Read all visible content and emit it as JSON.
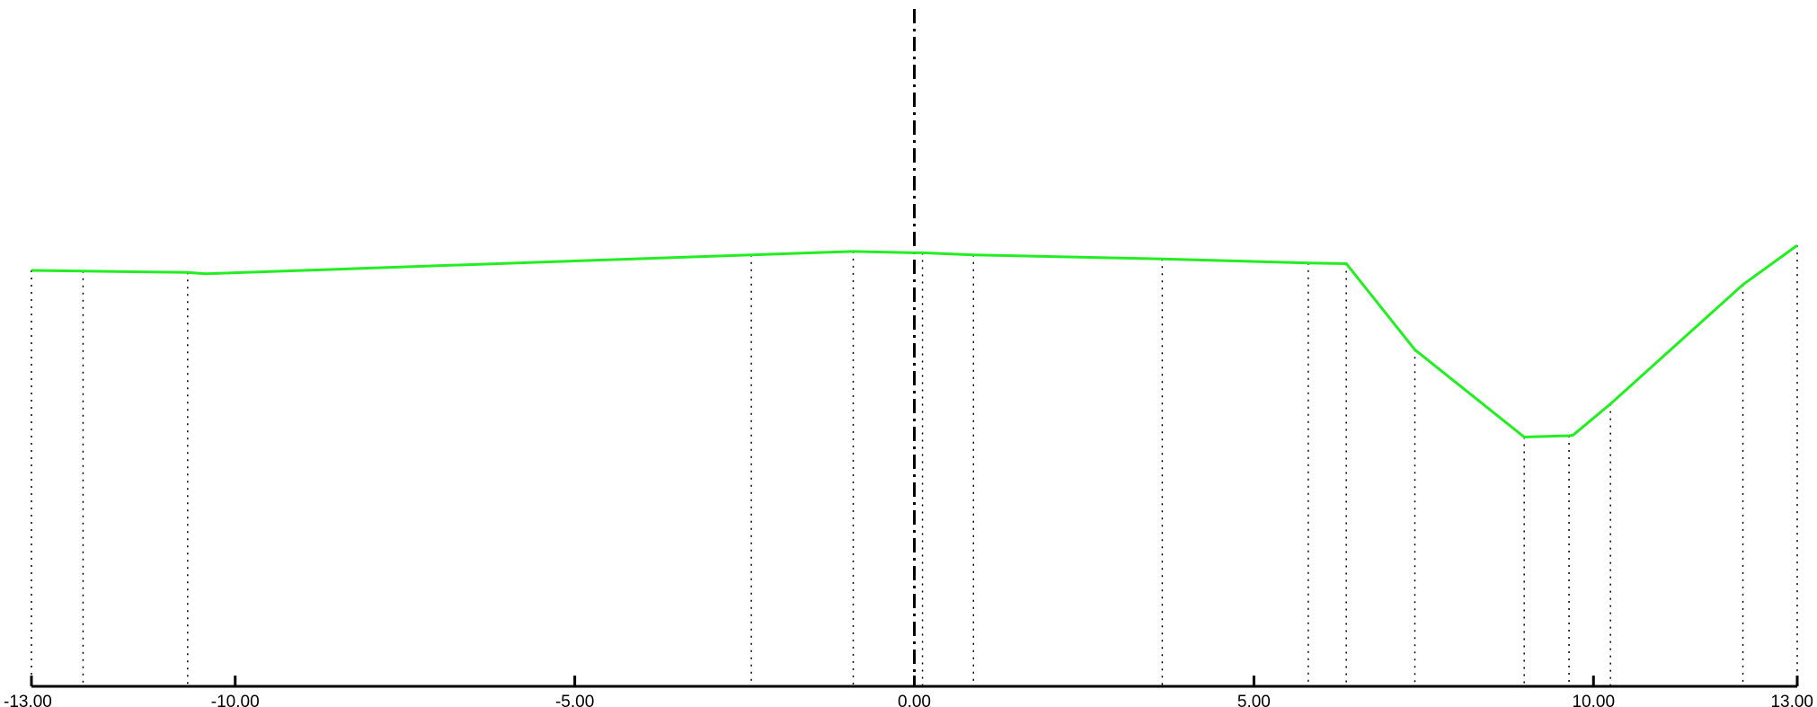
{
  "chart_data": {
    "type": "line",
    "title": "",
    "xlabel": "",
    "ylabel": "",
    "xlim": [
      -13.0,
      13.0
    ],
    "ylim": [
      0.0,
      10.0
    ],
    "grid": false,
    "centerline_x": 0.0,
    "x_ticks": [
      {
        "value": -13.0,
        "label": "-13.00"
      },
      {
        "value": -10.0,
        "label": "-10.00"
      },
      {
        "value": -5.0,
        "label": "-5.00"
      },
      {
        "value": 0.0,
        "label": "0.00"
      },
      {
        "value": 5.0,
        "label": "5.00"
      },
      {
        "value": 10.0,
        "label": "10.00"
      },
      {
        "value": 13.0,
        "label": "13.00"
      }
    ],
    "series": [
      {
        "color": "#22ee22",
        "x": [
          -13.0,
          -12.24,
          -10.7,
          -10.44,
          -2.4,
          -0.9,
          0.0,
          0.12,
          0.87,
          3.65,
          5.8,
          6.36,
          7.37,
          8.98,
          9.64,
          9.7,
          10.25,
          12.2,
          13.0
        ],
        "y": [
          6.14,
          6.13,
          6.11,
          6.09,
          6.37,
          6.42,
          6.4,
          6.4,
          6.37,
          6.31,
          6.25,
          6.24,
          4.97,
          3.68,
          3.7,
          3.71,
          4.17,
          5.93,
          6.51
        ]
      }
    ],
    "dropline_x": [
      -13.0,
      -12.24,
      -10.7,
      -2.4,
      -0.9,
      0.12,
      0.87,
      3.65,
      5.8,
      6.36,
      7.37,
      8.98,
      9.64,
      10.25,
      12.2,
      13.0
    ]
  }
}
